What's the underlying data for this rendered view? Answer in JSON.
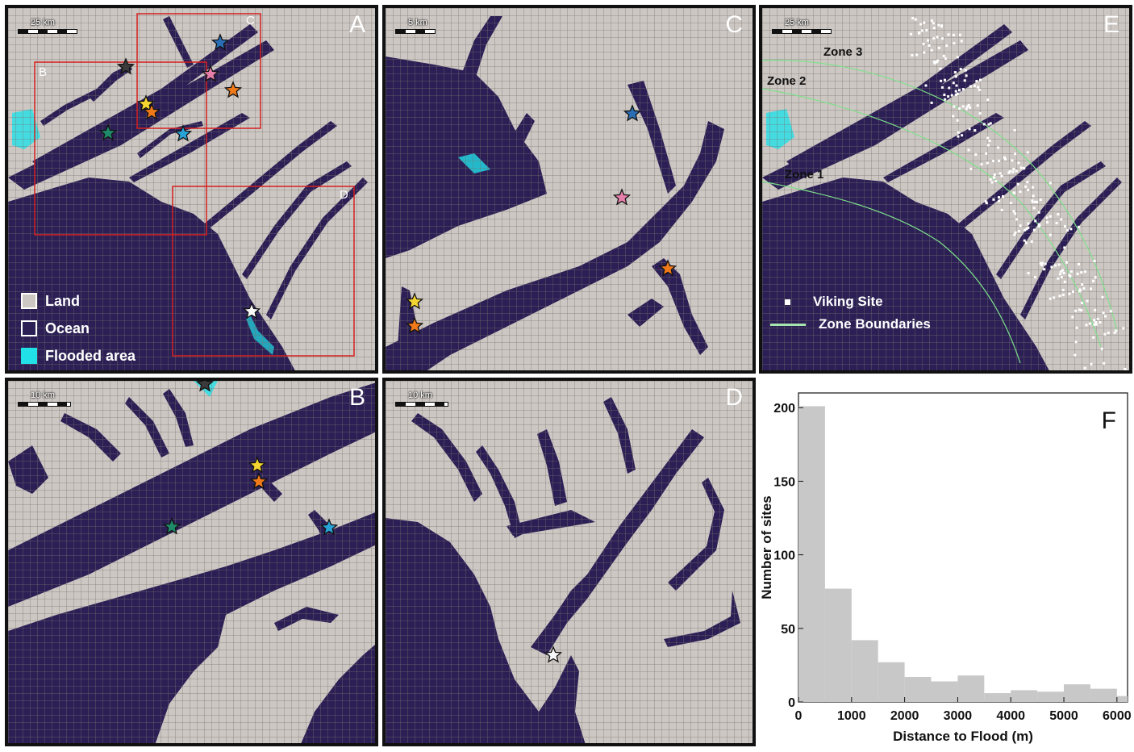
{
  "panels": {
    "A": {
      "letter": "A",
      "scale": "25 km"
    },
    "B": {
      "letter": "B",
      "scale": "10 km"
    },
    "C": {
      "letter": "C",
      "scale": "5 km"
    },
    "D": {
      "letter": "D",
      "scale": "10 km"
    },
    "E": {
      "letter": "E",
      "scale": "25 km"
    }
  },
  "inset_labels": {
    "B": "B",
    "C": "C",
    "D": "D"
  },
  "legend_a": {
    "land": "Land",
    "ocean": "Ocean",
    "flooded": "Flooded area",
    "colors": {
      "land": "#cdc7c3",
      "ocean": "#2b1f55",
      "flooded": "#22e0e8"
    }
  },
  "legend_e": {
    "site": "Viking Site",
    "zones": "Zone Boundaries"
  },
  "zones": {
    "zone1": "Zone 1",
    "zone2": "Zone 2",
    "zone3": "Zone 3"
  },
  "star_colors": {
    "dark": "#3b3b3b",
    "blue": "#2a6fb5",
    "pink": "#e57ea8",
    "orange": "#f07a1a",
    "yellow": "#f5d531",
    "green": "#1f8a6a",
    "lightblue": "#28a3d8",
    "white": "#f8f8f8"
  },
  "chart_data": {
    "type": "bar",
    "panel_letter": "F",
    "xlabel": "Distance to Flood (m)",
    "ylabel": "Number of sites",
    "x_ticks": [
      "0",
      "1000",
      "2000",
      "3000",
      "4000",
      "5000",
      "6000"
    ],
    "y_ticks": [
      "0",
      "50",
      "100",
      "150",
      "200"
    ],
    "xlim": [
      0,
      6200
    ],
    "ylim": [
      0,
      210
    ],
    "bin_width": 500,
    "bin_starts": [
      0,
      500,
      1000,
      1500,
      2000,
      2500,
      3000,
      3500,
      4000,
      4500,
      5000,
      5500,
      6000
    ],
    "values": [
      201,
      77,
      42,
      27,
      17,
      14,
      18,
      6,
      8,
      7,
      12,
      9,
      4
    ],
    "bar_color": "#c8c8c8"
  }
}
